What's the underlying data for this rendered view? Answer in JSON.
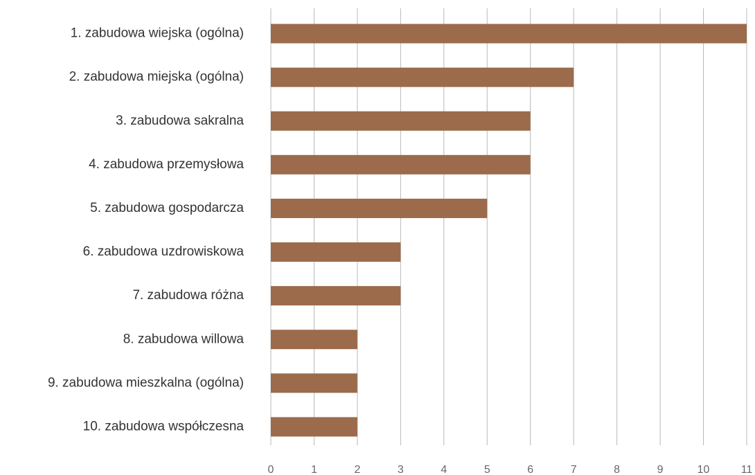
{
  "chart_data": {
    "type": "hbar",
    "categories": [
      "1. zabudowa wiejska (ogólna)",
      "2. zabudowa miejska (ogólna)",
      "3. zabudowa sakralna",
      "4. zabudowa przemysłowa",
      "5. zabudowa gospodarcza",
      "6. zabudowa uzdrowiskowa",
      "7. zabudowa różna",
      "8. zabudowa willowa",
      "9. zabudowa mieszkalna (ogólna)",
      "10. zabudowa współczesna"
    ],
    "values": [
      11,
      7,
      6,
      6,
      5,
      3,
      3,
      2,
      2,
      2
    ],
    "color": "#9b6b4b",
    "xlim": [
      0,
      11
    ],
    "xticks": [
      0,
      1,
      2,
      3,
      4,
      5,
      6,
      7,
      8,
      9,
      10,
      11
    ],
    "grid": true
  }
}
